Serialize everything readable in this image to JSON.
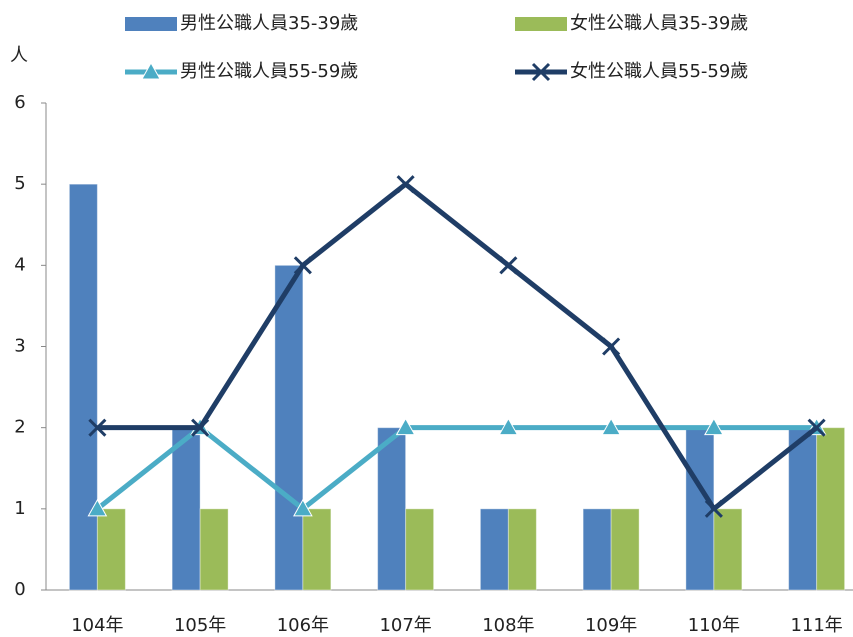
{
  "chart_data": {
    "type": "bar",
    "y_label": "人",
    "categories": [
      "104年",
      "105年",
      "106年",
      "107年",
      "108年",
      "109年",
      "110年",
      "111年"
    ],
    "series": [
      {
        "name": "男性公職人員35-39歲",
        "type": "bar",
        "color": "#4f81bd",
        "values": [
          5,
          2,
          4,
          2,
          1,
          1,
          2,
          2
        ]
      },
      {
        "name": "女性公職人員35-39歲",
        "type": "bar",
        "color": "#9bbb59",
        "values": [
          1,
          1,
          1,
          1,
          1,
          1,
          1,
          2
        ]
      },
      {
        "name": "男性公職人員55-59歲",
        "type": "line",
        "marker": "triangle",
        "color": "#4bacc6",
        "values": [
          1,
          2,
          1,
          2,
          2,
          2,
          2,
          2
        ]
      },
      {
        "name": "女性公職人員55-59歲",
        "type": "line",
        "marker": "x",
        "color": "#1f3d66",
        "values": [
          2,
          2,
          4,
          5,
          4,
          3,
          1,
          2
        ]
      }
    ],
    "ylim": [
      0,
      6
    ],
    "yticks": [
      0,
      1,
      2,
      3,
      4,
      5,
      6
    ],
    "grid": false
  }
}
